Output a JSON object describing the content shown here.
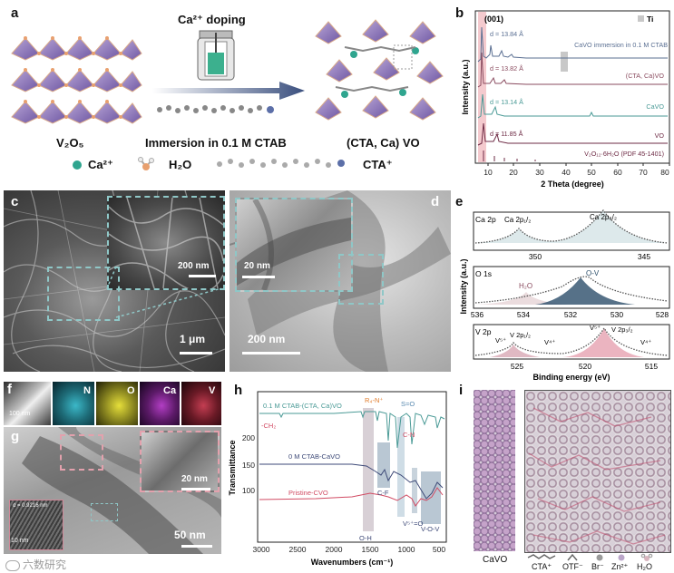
{
  "panel_letters": {
    "a": "a",
    "b": "b",
    "c": "c",
    "d": "d",
    "e": "e",
    "f": "f",
    "g": "g",
    "h": "h",
    "i": "i"
  },
  "colors": {
    "cavo_immersion": "#5a6f92",
    "cta_ca_vo": "#8a4b5f",
    "cavo": "#4a9a96",
    "vo": "#6e2b45",
    "highlight_pink": "#f0b8bd",
    "highlight_gray": "#c8c8c8",
    "ca_atom": "#2fa58f",
    "fit_pink": "#e7a7b5"
  },
  "panel_a": {
    "doping_label": "Ca²⁺ doping",
    "left_caption": "V₂O₅",
    "middle_caption": "Immersion in 0.1 M CTAB",
    "right_caption": "(CTA, Ca)  VO",
    "legend": [
      {
        "icon": "ca-atom-icon",
        "label": "Ca²⁺"
      },
      {
        "icon": "water-molecule-icon",
        "label": "H₂O"
      },
      {
        "icon": "cta-chain-icon",
        "label": "CTA⁺"
      }
    ]
  },
  "panel_b": {
    "type": "line",
    "title_peak": "(001)",
    "legend": "Ti",
    "xlabel": "2 Theta (degree)",
    "ylabel": "Intensity (a.u.)",
    "xlim": [
      5,
      80
    ],
    "xticks": [
      10,
      20,
      30,
      40,
      50,
      60,
      70,
      80
    ],
    "series": [
      {
        "name": "CaVO immersion in 0.1 M CTAB",
        "d": "d = 13.84 Å",
        "peak_2theta": 6.4
      },
      {
        "name": "(CTA, Ca)VO",
        "d": "d = 13.82 Å",
        "peak_2theta": 6.4
      },
      {
        "name": "CaVO",
        "d": "d = 13.14 Å",
        "peak_2theta": 6.7
      },
      {
        "name": "VO",
        "d": "d = 11.85 Å",
        "peak_2theta": 7.5
      },
      {
        "name": "V₂O₁₂·6H₂O (PDF 45-1401)",
        "d": "",
        "peak_2theta": 7.5
      }
    ]
  },
  "panel_c": {
    "scale_inset": "200 nm",
    "scale_main": "1 μm"
  },
  "panel_d": {
    "scale_inset": "20 nm",
    "scale_main": "200 nm"
  },
  "panel_e": {
    "xlabel": "Binding energy (eV)",
    "ylabel": "Intensity (a.u.)",
    "subpanels": [
      {
        "name": "Ca 2p",
        "peaks": [
          "Ca 2p₁/₂",
          "Ca 2p₃/₂"
        ],
        "xticks": [
          "350",
          "345"
        ]
      },
      {
        "name": "O 1s",
        "peaks": [
          "H₂O",
          "O-V"
        ],
        "xticks": [
          "536",
          "534",
          "532",
          "530",
          "528"
        ]
      },
      {
        "name": "V 2p",
        "peaks": [
          "V⁵⁺",
          "V 2p₁/₂",
          "V⁴⁺",
          "V⁵⁺",
          "V 2p₃/₂",
          "V⁴⁺"
        ],
        "xticks": [
          "525",
          "520",
          "515"
        ]
      }
    ]
  },
  "panel_f": {
    "scale": "100 nm",
    "elements": [
      "N",
      "O",
      "Ca",
      "V"
    ]
  },
  "panel_g": {
    "scale_inset": "20 nm",
    "scale_main": "50 nm",
    "fft_label": "d = 0.9216 nm",
    "scale_fft": "10 nm"
  },
  "panel_h": {
    "type": "line",
    "xlabel": "Wavenumbers (cm⁻¹)",
    "ylabel": "Transmittance",
    "xlim": [
      3000,
      400
    ],
    "xticks": [
      "3000",
      "2500",
      "2000",
      "1500",
      "1000",
      "500"
    ],
    "yticks": [
      "200",
      "150",
      "100"
    ],
    "series": [
      {
        "name": "0.1 M CTAB-(CTA, Ca)VO",
        "offset": 200
      },
      {
        "name": "0 M CTAB-CaVO",
        "offset": 150
      },
      {
        "name": "Pristine-CVO",
        "offset": 80
      }
    ],
    "annotations": [
      "-CH₂",
      "R₄-N⁺",
      "S=O",
      "C-N",
      "C-F",
      "O-H",
      "V⁵⁺=O",
      "V-O-V"
    ]
  },
  "panel_i": {
    "labels": [
      "CaVO",
      "CTA⁺",
      "OTF⁻",
      "Br⁻",
      "Zn²⁺",
      "H₂O"
    ]
  },
  "watermark": "六数研究"
}
